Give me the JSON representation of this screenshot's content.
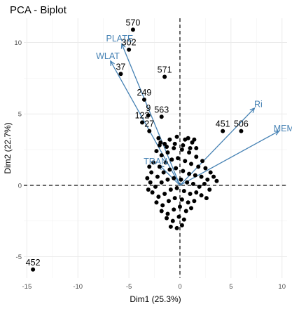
{
  "chart_data": {
    "type": "scatter",
    "title": "PCA - Biplot",
    "xlabel": "Dim1 (25.3%)",
    "ylabel": "Dim2 (22.7%)",
    "xlim": [
      -15.3,
      10.5
    ],
    "ylim": [
      -6.5,
      11.7
    ],
    "x_ticks": [
      -15,
      -10,
      -5,
      0,
      5,
      10
    ],
    "y_ticks": [
      -5,
      0,
      5,
      10
    ],
    "x_tick_labels": [
      "-15",
      "-10",
      "-5",
      "0",
      "5",
      "10"
    ],
    "y_tick_labels": [
      "-5",
      "0",
      "5",
      "10"
    ],
    "grid": true,
    "reference_lines": {
      "x": 0,
      "y": 0,
      "style": "dashed"
    },
    "labeled_points": [
      {
        "label": "570",
        "x": -4.6,
        "y": 10.9
      },
      {
        "label": "302",
        "x": -5.0,
        "y": 9.5
      },
      {
        "label": "37",
        "x": -5.8,
        "y": 7.8
      },
      {
        "label": "571",
        "x": -1.5,
        "y": 7.6
      },
      {
        "label": "249",
        "x": -3.5,
        "y": 6.0
      },
      {
        "label": "563",
        "x": -1.8,
        "y": 4.8
      },
      {
        "label": "122",
        "x": -3.7,
        "y": 4.4
      },
      {
        "label": "27",
        "x": -3.0,
        "y": 3.8
      },
      {
        "label": "9",
        "x": -3.1,
        "y": 4.9
      },
      {
        "label": "451",
        "x": 4.2,
        "y": 3.8
      },
      {
        "label": "506",
        "x": 6.0,
        "y": 3.8
      },
      {
        "label": "452",
        "x": -14.4,
        "y": -5.9
      }
    ],
    "cluster_points": [
      [
        -2.1,
        3.3
      ],
      [
        -1.5,
        2.9
      ],
      [
        -1.0,
        3.2
      ],
      [
        -0.3,
        3.4
      ],
      [
        0.5,
        3.2
      ],
      [
        1.2,
        3.0
      ],
      [
        1.6,
        2.6
      ],
      [
        -2.3,
        2.4
      ],
      [
        -1.8,
        2.1
      ],
      [
        -1.2,
        2.3
      ],
      [
        -0.6,
        2.6
      ],
      [
        0.2,
        2.5
      ],
      [
        0.9,
        2.3
      ],
      [
        1.6,
        2.0
      ],
      [
        2.2,
        1.7
      ],
      [
        -2.6,
        1.6
      ],
      [
        -2.0,
        1.3
      ],
      [
        -1.4,
        1.6
      ],
      [
        -0.8,
        1.8
      ],
      [
        -0.2,
        1.9
      ],
      [
        0.5,
        1.7
      ],
      [
        1.1,
        1.5
      ],
      [
        1.8,
        1.3
      ],
      [
        2.5,
        1.2
      ],
      [
        3.0,
        0.9
      ],
      [
        -2.8,
        0.9
      ],
      [
        -2.2,
        0.6
      ],
      [
        -1.6,
        0.9
      ],
      [
        -1.0,
        1.1
      ],
      [
        -0.4,
        1.2
      ],
      [
        0.3,
        1.0
      ],
      [
        0.9,
        0.8
      ],
      [
        1.5,
        0.7
      ],
      [
        2.1,
        0.6
      ],
      [
        2.7,
        0.4
      ],
      [
        -2.9,
        0.2
      ],
      [
        -2.4,
        -0.1
      ],
      [
        -1.8,
        0.2
      ],
      [
        -1.2,
        0.4
      ],
      [
        -0.6,
        0.5
      ],
      [
        0.1,
        0.4
      ],
      [
        0.7,
        0.2
      ],
      [
        1.3,
        0.1
      ],
      [
        1.9,
        -0.1
      ],
      [
        2.4,
        0.1
      ],
      [
        -2.7,
        -0.5
      ],
      [
        -2.1,
        -0.8
      ],
      [
        -1.5,
        -0.6
      ],
      [
        -0.9,
        -0.3
      ],
      [
        -0.3,
        -0.2
      ],
      [
        0.4,
        -0.4
      ],
      [
        1.0,
        -0.6
      ],
      [
        1.6,
        -0.5
      ],
      [
        2.1,
        -0.7
      ],
      [
        -2.3,
        -1.2
      ],
      [
        -1.7,
        -1.4
      ],
      [
        -1.1,
        -1.1
      ],
      [
        -0.5,
        -0.9
      ],
      [
        0.2,
        -1.0
      ],
      [
        0.8,
        -1.2
      ],
      [
        1.4,
        -1.1
      ],
      [
        -1.8,
        -1.8
      ],
      [
        -1.2,
        -2.0
      ],
      [
        -0.6,
        -1.7
      ],
      [
        0.0,
        -1.5
      ],
      [
        0.6,
        -1.8
      ],
      [
        1.1,
        -1.6
      ],
      [
        -1.3,
        -2.3
      ],
      [
        -0.7,
        -2.5
      ],
      [
        -0.1,
        -2.2
      ],
      [
        0.4,
        -2.4
      ],
      [
        -0.9,
        -2.9
      ],
      [
        -0.3,
        -3.0
      ],
      [
        0.2,
        -2.8
      ],
      [
        -2.0,
        2.8
      ],
      [
        -1.3,
        2.7
      ],
      [
        -0.5,
        2.9
      ],
      [
        0.3,
        2.8
      ],
      [
        1.0,
        2.6
      ],
      [
        -1.9,
        3.0
      ],
      [
        0.8,
        3.3
      ],
      [
        1.4,
        3.2
      ],
      [
        -3.0,
        1.3
      ],
      [
        -3.2,
        0.5
      ],
      [
        -3.1,
        -0.3
      ],
      [
        3.3,
        0.6
      ],
      [
        3.6,
        0.3
      ],
      [
        2.9,
        -0.3
      ],
      [
        2.6,
        -0.9
      ]
    ],
    "variables": [
      {
        "label": "PLATE",
        "x": -5.7,
        "y": 9.9
      },
      {
        "label": "WLAT",
        "x": -6.8,
        "y": 8.7
      },
      {
        "label": "Ri",
        "x": 7.3,
        "y": 5.4
      },
      {
        "label": "MEM",
        "x": 9.7,
        "y": 3.8
      },
      {
        "label": "TRAN",
        "x": -2.0,
        "y": 1.4
      }
    ],
    "point_color": "#000000",
    "variable_color": "#4682b4"
  }
}
